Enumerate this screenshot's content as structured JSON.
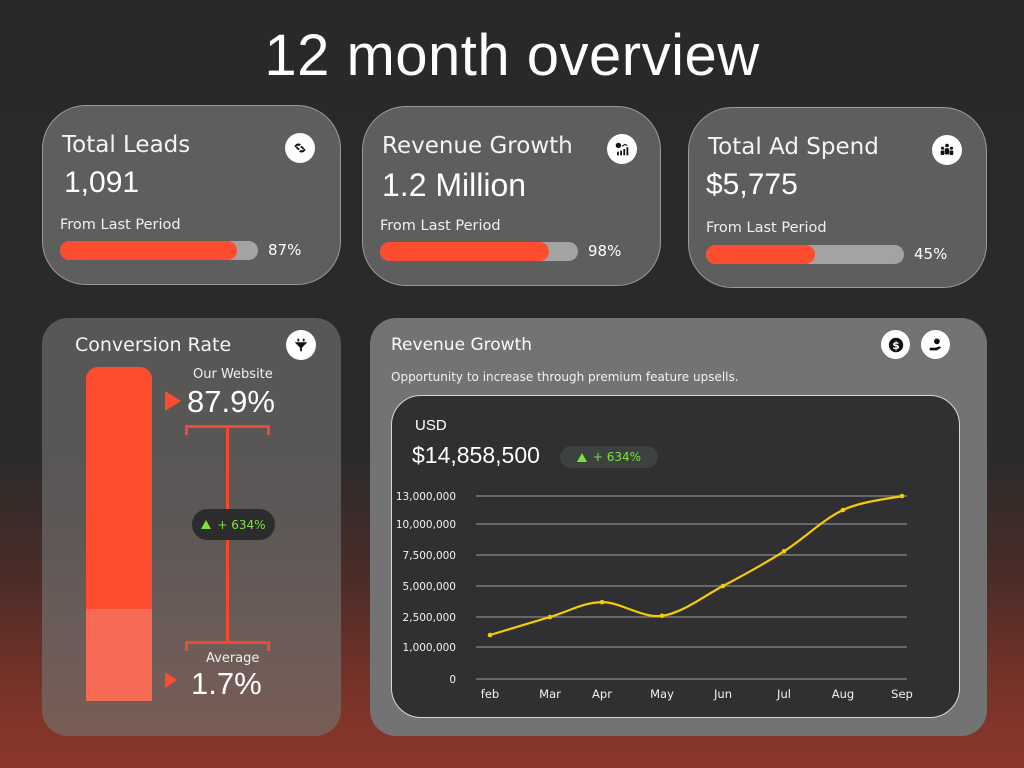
{
  "page": {
    "title": "12 month overview"
  },
  "kpis": [
    {
      "title": "Total Leads",
      "value": "1,091",
      "subtitle": "From Last Period",
      "progress_pct": 87,
      "progress_label": "87%",
      "icon": "handshake-icon"
    },
    {
      "title": "Revenue Growth",
      "value": "1.2 Million",
      "subtitle": "From Last Period",
      "progress_pct": 98,
      "progress_label": "98%",
      "icon": "growth-chart-icon"
    },
    {
      "title": "Total Ad Spend",
      "value": "$5,775",
      "subtitle": "From Last Period",
      "progress_pct": 45,
      "progress_label": "45%",
      "icon": "team-icon"
    }
  ],
  "conversion": {
    "title": "Conversion Rate",
    "icon": "funnel-icon",
    "ours_label": "Our Website",
    "ours_value": "87.9%",
    "avg_label": "Average",
    "avg_value": "1.7%",
    "delta": "+ 634%"
  },
  "revenue": {
    "title": "Revenue Growth",
    "subtitle": "Opportunity to increase through premium feature upsells.",
    "icons": [
      "dollar-coin-icon",
      "hand-money-icon"
    ],
    "currency": "USD",
    "total": "$14,858,500",
    "delta": "+ 634%"
  },
  "colors": {
    "accent": "#fd4c2e",
    "line": "#f5cc00",
    "positive": "#7fe23a"
  },
  "chart_data": {
    "type": "line",
    "title": "",
    "xlabel": "",
    "ylabel": "",
    "categories": [
      "feb",
      "Mar",
      "Apr",
      "May",
      "Jun",
      "Jul",
      "Aug",
      "Sep"
    ],
    "series": [
      {
        "name": "Revenue (USD)",
        "values": [
          1600000,
          2500000,
          3700000,
          2600000,
          5000000,
          7800000,
          11500000,
          13000000
        ]
      }
    ],
    "y_ticks": [
      0,
      1000000,
      2500000,
      5000000,
      7500000,
      10000000,
      13000000
    ],
    "y_tick_labels": [
      "0",
      "1,000,000",
      "2,500,000",
      "5,000,000",
      "7,500,000",
      "10,000,000",
      "13,000,000"
    ],
    "ylim": [
      0,
      13000000
    ],
    "grid": true,
    "legend": "none"
  }
}
